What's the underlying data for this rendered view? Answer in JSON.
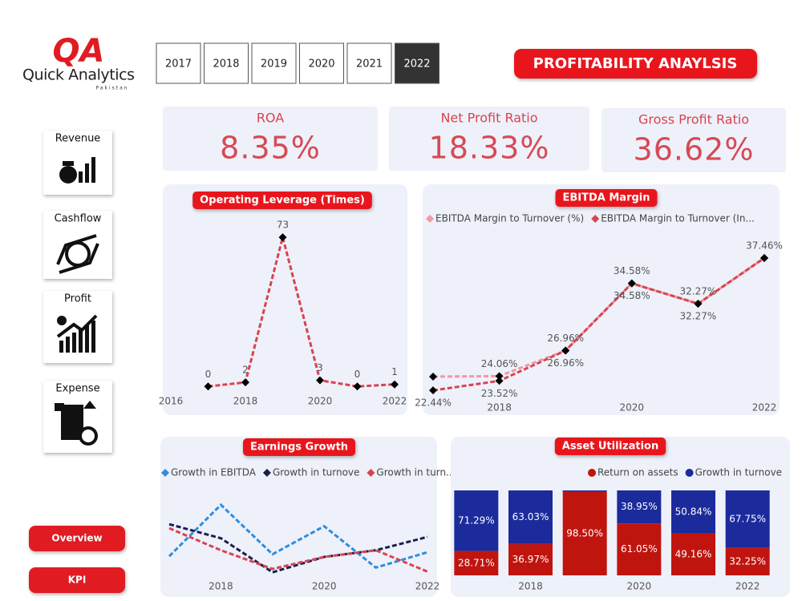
{
  "header": {
    "logo_mark": "QA",
    "logo": "Quick Analytics",
    "logo_sub": "Pakistan",
    "years": [
      "2017",
      "2018",
      "2019",
      "2020",
      "2021",
      "2022"
    ],
    "selected": "2022",
    "title": "PROFITABILITY ANAYLSIS"
  },
  "nav": [
    "Revenue",
    "Cashflow",
    "Profit",
    "Expense"
  ],
  "buttons": [
    "Overview",
    "KPI"
  ],
  "kpis": [
    {
      "label": "ROA",
      "value": "8.35%"
    },
    {
      "label": "Net Profit Ratio",
      "value": "18.33%"
    },
    {
      "label": "Gross Profit Ratio",
      "value": "36.62%"
    }
  ],
  "chart_data": [
    {
      "type": "line",
      "title": "Operating Leverage (Times)",
      "x": [
        2017,
        2018,
        2019,
        2020,
        2021,
        2022
      ],
      "values": [
        0,
        2,
        73,
        3,
        0,
        1
      ],
      "color": "#d9434f",
      "dashed": true,
      "marker_color": "#000000",
      "data_labels": true,
      "xlim": [
        2016,
        2022
      ],
      "xticks": [
        2016,
        2018,
        2020,
        2022
      ],
      "ylim": [
        -5,
        75
      ]
    },
    {
      "type": "line",
      "title": "EBITDA Margin",
      "x": [
        2017,
        2018,
        2019,
        2020,
        2021,
        2022
      ],
      "series": [
        {
          "name": "EBITDA Margin to Turnover (%)",
          "color": "#f09aa1",
          "values": [
            24.0,
            24.06,
            26.96,
            34.58,
            32.27,
            37.46
          ],
          "value_labels": [
            null,
            "24.06%",
            "26.96%",
            "34.58%",
            "32.27%",
            "37.46%"
          ],
          "label_position": "above"
        },
        {
          "name": "EBITDA Margin to Turnover (In...",
          "color": "#d9434f",
          "values": [
            22.44,
            23.52,
            26.96,
            34.58,
            32.27,
            37.46
          ],
          "value_labels": [
            "22.44%",
            "23.52%",
            "26.96%",
            "34.58%",
            "32.27%",
            null
          ],
          "label_position": "below"
        }
      ],
      "dashed": true,
      "marker_color": "#000000",
      "xlim": [
        2017,
        2022
      ],
      "xticks": [
        2018,
        2020,
        2022
      ],
      "ylim": [
        20,
        39
      ]
    },
    {
      "type": "line",
      "title": "Earnings Growth",
      "x": [
        2017,
        2018,
        2019,
        2020,
        2021,
        2022
      ],
      "series": [
        {
          "name": "Growth in EBITDA",
          "color": "#2e8de0",
          "values": [
            -29,
            48,
            -26,
            16,
            -46,
            -23
          ]
        },
        {
          "name": "Growth in turnove",
          "color": "#1b1f4f",
          "values": [
            19,
            -2,
            -53,
            -30,
            -20,
            0
          ]
        },
        {
          "name": "Growth in turn...",
          "color": "#d9434f",
          "values": [
            13,
            -20,
            -48,
            -30,
            -20,
            -52
          ]
        }
      ],
      "dashed": true,
      "xlim": [
        2017,
        2022
      ],
      "xticks": [
        2018,
        2020,
        2022
      ],
      "ylim": [
        -60,
        60
      ]
    },
    {
      "type": "bar",
      "title": "Asset Utilization",
      "categories": [
        null,
        "2018",
        null,
        "2020",
        null,
        "2022"
      ],
      "series": [
        {
          "name": "Return on assets",
          "color": "#c0150f",
          "values": [
            28.71,
            36.97,
            98.5,
            61.05,
            49.16,
            32.25
          ],
          "value_labels": [
            "28.71%",
            "36.97%",
            "98.50%",
            "61.05%",
            "49.16%",
            "32.25%"
          ]
        },
        {
          "name": "Growth in turnove",
          "color": "#1b2b9c",
          "values": [
            71.29,
            63.03,
            1.5,
            38.95,
            50.84,
            67.75
          ],
          "value_labels": [
            "71.29%",
            "63.03%",
            null,
            "38.95%",
            "50.84%",
            "67.75%"
          ]
        }
      ],
      "stacked": true,
      "ylim": [
        0,
        100
      ]
    }
  ]
}
